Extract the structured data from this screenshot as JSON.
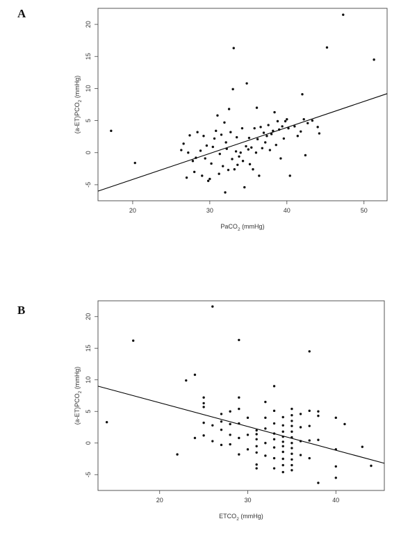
{
  "chart_data": [
    {
      "type": "scatter",
      "panel_label": "A",
      "title": "",
      "xlabel": {
        "pre": "PaCO",
        "sub": "2",
        "post": " (mmHg)"
      },
      "ylabel": {
        "pre": "(a-ET)PCO",
        "sub": "2",
        "post": " (mmHg)"
      },
      "xlim": [
        15.5,
        53
      ],
      "ylim": [
        -7.5,
        22.5
      ],
      "xticks": [
        20,
        30,
        40,
        50
      ],
      "yticks": [
        -5,
        0,
        5,
        10,
        15,
        20
      ],
      "grid": false,
      "legend": "none",
      "regression_line": {
        "x": [
          15.5,
          53
        ],
        "y": [
          -6,
          9.2
        ]
      },
      "points": [
        [
          17.2,
          3.4
        ],
        [
          20.3,
          -1.6
        ],
        [
          26.3,
          0.4
        ],
        [
          26.6,
          1.4
        ],
        [
          27.0,
          -3.9
        ],
        [
          27.2,
          0.0
        ],
        [
          27.4,
          2.7
        ],
        [
          27.8,
          -1.3
        ],
        [
          28.0,
          -3.0
        ],
        [
          28.2,
          -0.8
        ],
        [
          28.4,
          3.2
        ],
        [
          28.8,
          0.3
        ],
        [
          29.0,
          -3.6
        ],
        [
          29.2,
          2.6
        ],
        [
          29.4,
          -0.9
        ],
        [
          29.6,
          1.1
        ],
        [
          29.8,
          -4.4
        ],
        [
          30.0,
          -4.1
        ],
        [
          30.2,
          -1.7
        ],
        [
          30.4,
          0.9
        ],
        [
          30.6,
          2.2
        ],
        [
          30.8,
          3.4
        ],
        [
          31.0,
          5.8
        ],
        [
          31.2,
          -3.3
        ],
        [
          31.3,
          -0.2
        ],
        [
          31.5,
          2.8
        ],
        [
          31.7,
          -2.1
        ],
        [
          31.9,
          4.7
        ],
        [
          32.0,
          -6.2
        ],
        [
          32.1,
          1.6
        ],
        [
          32.2,
          0.6
        ],
        [
          32.4,
          -2.7
        ],
        [
          32.5,
          6.8
        ],
        [
          32.7,
          3.2
        ],
        [
          32.9,
          -1.0
        ],
        [
          33.0,
          9.9
        ],
        [
          33.1,
          16.3
        ],
        [
          33.2,
          -2.6
        ],
        [
          33.4,
          0.2
        ],
        [
          33.5,
          2.4
        ],
        [
          33.6,
          -1.9
        ],
        [
          33.8,
          -0.6
        ],
        [
          34.0,
          0.0
        ],
        [
          34.2,
          3.8
        ],
        [
          34.3,
          -1.3
        ],
        [
          34.5,
          -5.4
        ],
        [
          34.7,
          1.0
        ],
        [
          34.8,
          10.8
        ],
        [
          35.0,
          0.5
        ],
        [
          35.1,
          2.3
        ],
        [
          35.2,
          -1.8
        ],
        [
          35.4,
          0.8
        ],
        [
          35.6,
          -2.6
        ],
        [
          35.8,
          3.8
        ],
        [
          36.0,
          0.0
        ],
        [
          36.1,
          7.0
        ],
        [
          36.2,
          2.1
        ],
        [
          36.4,
          -3.6
        ],
        [
          36.6,
          4.0
        ],
        [
          36.8,
          0.7
        ],
        [
          37.0,
          3.1
        ],
        [
          37.2,
          1.6
        ],
        [
          37.4,
          2.6
        ],
        [
          37.6,
          4.3
        ],
        [
          37.8,
          0.4
        ],
        [
          38.0,
          2.9
        ],
        [
          38.2,
          3.4
        ],
        [
          38.4,
          6.3
        ],
        [
          38.6,
          1.2
        ],
        [
          38.8,
          4.9
        ],
        [
          39.0,
          3.6
        ],
        [
          39.2,
          -0.9
        ],
        [
          39.4,
          4.1
        ],
        [
          39.6,
          2.2
        ],
        [
          39.8,
          4.9
        ],
        [
          40.0,
          5.2
        ],
        [
          40.2,
          3.8
        ],
        [
          40.4,
          -3.6
        ],
        [
          41.0,
          4.1
        ],
        [
          41.4,
          2.6
        ],
        [
          41.8,
          3.3
        ],
        [
          42.0,
          9.1
        ],
        [
          42.2,
          5.2
        ],
        [
          42.4,
          -0.4
        ],
        [
          42.7,
          4.6
        ],
        [
          43.3,
          5.0
        ],
        [
          44.0,
          4.0
        ],
        [
          44.2,
          3.0
        ],
        [
          45.2,
          16.4
        ],
        [
          47.3,
          21.5
        ],
        [
          51.3,
          14.5
        ]
      ]
    },
    {
      "type": "scatter",
      "panel_label": "B",
      "title": "",
      "xlabel": {
        "pre": "ETCO",
        "sub": "2",
        "post": " (mmHg)"
      },
      "ylabel": {
        "pre": "(a-ET)PCO",
        "sub": "2",
        "post": " (mmHg)"
      },
      "xlim": [
        13,
        45.5
      ],
      "ylim": [
        -7.5,
        22.5
      ],
      "xticks": [
        20,
        30,
        40
      ],
      "yticks": [
        -5,
        0,
        5,
        10,
        15,
        20
      ],
      "grid": false,
      "legend": "none",
      "regression_line": {
        "x": [
          13,
          45.5
        ],
        "y": [
          9.0,
          -3.2
        ]
      },
      "points": [
        [
          14.0,
          3.3
        ],
        [
          17.0,
          16.2
        ],
        [
          22.0,
          -1.8
        ],
        [
          23.0,
          9.9
        ],
        [
          24.0,
          10.8
        ],
        [
          24.0,
          0.8
        ],
        [
          25.0,
          7.2
        ],
        [
          25.0,
          6.3
        ],
        [
          25.0,
          5.7
        ],
        [
          25.0,
          3.2
        ],
        [
          25.0,
          1.2
        ],
        [
          26.0,
          21.6
        ],
        [
          26.0,
          2.8
        ],
        [
          26.0,
          0.3
        ],
        [
          27.0,
          4.6
        ],
        [
          27.0,
          3.4
        ],
        [
          27.0,
          2.1
        ],
        [
          27.0,
          -0.3
        ],
        [
          28.0,
          5.0
        ],
        [
          28.0,
          3.0
        ],
        [
          28.0,
          1.3
        ],
        [
          28.0,
          -0.2
        ],
        [
          29.0,
          16.3
        ],
        [
          29.0,
          7.2
        ],
        [
          29.0,
          5.4
        ],
        [
          29.0,
          3.1
        ],
        [
          29.0,
          0.8
        ],
        [
          29.0,
          -1.8
        ],
        [
          30.0,
          4.0
        ],
        [
          30.0,
          1.3
        ],
        [
          30.0,
          -1.0
        ],
        [
          31.0,
          2.0
        ],
        [
          31.0,
          1.4
        ],
        [
          31.0,
          0.6
        ],
        [
          31.0,
          -0.5
        ],
        [
          31.0,
          -1.5
        ],
        [
          31.0,
          -3.4
        ],
        [
          31.0,
          -4.0
        ],
        [
          32.0,
          6.5
        ],
        [
          32.0,
          4.0
        ],
        [
          32.0,
          2.3
        ],
        [
          32.0,
          0.0
        ],
        [
          32.0,
          -2.0
        ],
        [
          33.0,
          9.0
        ],
        [
          33.0,
          5.1
        ],
        [
          33.0,
          3.1
        ],
        [
          33.0,
          1.5
        ],
        [
          33.0,
          0.6
        ],
        [
          33.0,
          -0.7
        ],
        [
          33.0,
          -2.4
        ],
        [
          33.0,
          -4.0
        ],
        [
          34.0,
          4.1
        ],
        [
          34.0,
          2.8
        ],
        [
          34.0,
          1.8
        ],
        [
          34.0,
          1.0
        ],
        [
          34.0,
          0.2
        ],
        [
          34.0,
          -0.5
        ],
        [
          34.0,
          -1.4
        ],
        [
          34.0,
          -2.5
        ],
        [
          34.0,
          -3.5
        ],
        [
          34.0,
          -4.6
        ],
        [
          35.0,
          5.4
        ],
        [
          35.0,
          4.4
        ],
        [
          35.0,
          3.5
        ],
        [
          35.0,
          2.7
        ],
        [
          35.0,
          1.8
        ],
        [
          35.0,
          0.9
        ],
        [
          35.0,
          0.0
        ],
        [
          35.0,
          -0.8
        ],
        [
          35.0,
          -1.7
        ],
        [
          35.0,
          -2.6
        ],
        [
          35.0,
          -3.5
        ],
        [
          35.0,
          -4.3
        ],
        [
          36.0,
          4.6
        ],
        [
          36.0,
          2.5
        ],
        [
          36.0,
          0.3
        ],
        [
          36.0,
          -1.9
        ],
        [
          37.0,
          14.5
        ],
        [
          37.0,
          5.1
        ],
        [
          37.0,
          2.7
        ],
        [
          37.0,
          0.4
        ],
        [
          37.0,
          -2.4
        ],
        [
          38.0,
          5.0
        ],
        [
          38.0,
          4.3
        ],
        [
          38.0,
          0.5
        ],
        [
          38.0,
          -6.3
        ],
        [
          40.0,
          4.0
        ],
        [
          40.0,
          -1.0
        ],
        [
          40.0,
          -3.7
        ],
        [
          40.0,
          -5.5
        ],
        [
          41.0,
          3.0
        ],
        [
          43.0,
          -0.6
        ],
        [
          44.0,
          -3.6
        ]
      ]
    }
  ]
}
